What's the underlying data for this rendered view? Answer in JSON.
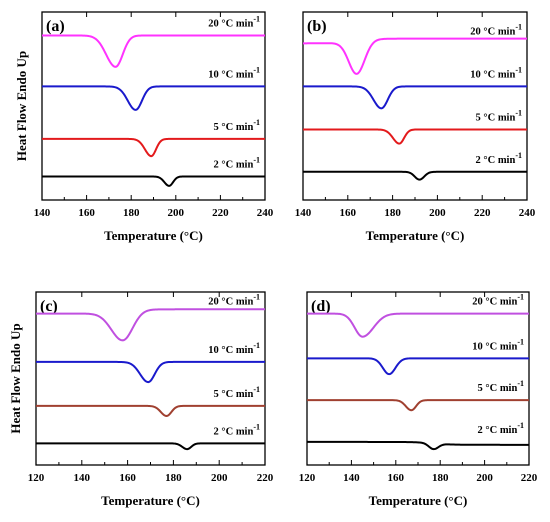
{
  "colors": {
    "20": "#ff33ff",
    "10": "#1a1acc",
    "5": "#e31a1c",
    "2": "#000000",
    "20c": "#c050e0",
    "5c": "#a04030"
  },
  "chart_data": [
    {
      "type": "line",
      "panel_label": "(a)",
      "xlabel": "Temperature (°C)",
      "ylabel": "Heat Flow Endo Up",
      "xlim": [
        140,
        240
      ],
      "xticks": [
        140,
        160,
        180,
        200,
        220,
        240
      ],
      "grid": false,
      "series": [
        {
          "name": "20 °C min-1",
          "rate_label": "20 °C min",
          "rate_exp": "-1",
          "color": "#ff33ff",
          "baseline": 2.1,
          "peak_x": 173,
          "depth": 0.4,
          "width_left": 6,
          "width_right": 4.5,
          "ramp": 0
        },
        {
          "name": "10 °C min-1",
          "rate_label": "10 °C min",
          "rate_exp": "-1",
          "color": "#1a1acc",
          "baseline": 1.45,
          "peak_x": 182,
          "depth": 0.3,
          "width_left": 5,
          "width_right": 4,
          "ramp": 0
        },
        {
          "name": "5 °C min-1",
          "rate_label": "5 °C min",
          "rate_exp": "-1",
          "color": "#e31a1c",
          "baseline": 0.78,
          "peak_x": 189,
          "depth": 0.22,
          "width_left": 4,
          "width_right": 3,
          "ramp": 0
        },
        {
          "name": "2 °C min-1",
          "rate_label": "2 °C min",
          "rate_exp": "-1",
          "color": "#000000",
          "baseline": 0.3,
          "peak_x": 197,
          "depth": 0.12,
          "width_left": 3,
          "width_right": 2.5,
          "ramp": 0
        }
      ]
    },
    {
      "type": "line",
      "panel_label": "(b)",
      "xlabel": "Temperature (°C)",
      "ylabel": "",
      "xlim": [
        140,
        240
      ],
      "xticks": [
        140,
        160,
        180,
        200,
        220,
        240
      ],
      "grid": false,
      "series": [
        {
          "name": "20 °C min-1",
          "rate_label": "20 °C min",
          "rate_exp": "-1",
          "color": "#ff33ff",
          "baseline": 2.0,
          "peak_x": 164,
          "depth": 0.42,
          "width_left": 5,
          "width_right": 5,
          "ramp": 0.06
        },
        {
          "name": "10 °C min-1",
          "rate_label": "10 °C min",
          "rate_exp": "-1",
          "color": "#1a1acc",
          "baseline": 1.45,
          "peak_x": 175,
          "depth": 0.28,
          "width_left": 5,
          "width_right": 4,
          "ramp": 0
        },
        {
          "name": "5 °C min-1",
          "rate_label": "5 °C min",
          "rate_exp": "-1",
          "color": "#e31a1c",
          "baseline": 0.9,
          "peak_x": 183,
          "depth": 0.18,
          "width_left": 4,
          "width_right": 3,
          "ramp": 0
        },
        {
          "name": "2 °C min-1",
          "rate_label": "2 °C min",
          "rate_exp": "-1",
          "color": "#000000",
          "baseline": 0.36,
          "peak_x": 192,
          "depth": 0.1,
          "width_left": 3,
          "width_right": 3,
          "ramp": 0
        }
      ]
    },
    {
      "type": "line",
      "panel_label": "(c)",
      "xlabel": "Temperature (°C)",
      "ylabel": "Heat Flow Endo Up",
      "xlim": [
        120,
        220
      ],
      "xticks": [
        120,
        140,
        160,
        180,
        200,
        220
      ],
      "grid": false,
      "series": [
        {
          "name": "20 °C min-1",
          "rate_label": "20 °C min",
          "rate_exp": "-1",
          "color": "#c050e0",
          "baseline": 2.1,
          "peak_x": 158,
          "depth": 0.4,
          "width_left": 7,
          "width_right": 6,
          "ramp": 0.06
        },
        {
          "name": "10 °C min-1",
          "rate_label": "10 °C min",
          "rate_exp": "-1",
          "color": "#1a1acc",
          "baseline": 1.43,
          "peak_x": 169,
          "depth": 0.28,
          "width_left": 5,
          "width_right": 4,
          "ramp": 0
        },
        {
          "name": "5 °C min-1",
          "rate_label": "5 °C min",
          "rate_exp": "-1",
          "color": "#a04030",
          "baseline": 0.82,
          "peak_x": 177,
          "depth": 0.14,
          "width_left": 3.5,
          "width_right": 3,
          "ramp": 0
        },
        {
          "name": "2 °C min-1",
          "rate_label": "2 °C min",
          "rate_exp": "-1",
          "color": "#000000",
          "baseline": 0.3,
          "peak_x": 186,
          "depth": 0.08,
          "width_left": 3,
          "width_right": 2.5,
          "ramp": 0
        }
      ]
    },
    {
      "type": "line",
      "panel_label": "(d)",
      "xlabel": "Temperature (°C)",
      "ylabel": "",
      "xlim": [
        120,
        220
      ],
      "xticks": [
        120,
        140,
        160,
        180,
        200,
        220
      ],
      "grid": false,
      "series": [
        {
          "name": "20 °C min-1",
          "rate_label": "20 °C min",
          "rate_exp": "-1",
          "color": "#c050e0",
          "baseline": 2.1,
          "peak_x": 145,
          "depth": 0.32,
          "width_left": 5,
          "width_right": 7,
          "ramp": 0
        },
        {
          "name": "10 °C min-1",
          "rate_label": "10 °C min",
          "rate_exp": "-1",
          "color": "#1a1acc",
          "baseline": 1.48,
          "peak_x": 157,
          "depth": 0.22,
          "width_left": 4,
          "width_right": 4,
          "ramp": 0
        },
        {
          "name": "5 °C min-1",
          "rate_label": "5 °C min",
          "rate_exp": "-1",
          "color": "#a04030",
          "baseline": 0.9,
          "peak_x": 167,
          "depth": 0.14,
          "width_left": 3.5,
          "width_right": 3,
          "ramp": 0
        },
        {
          "name": "2 °C min-1",
          "rate_label": "2 °C min",
          "rate_exp": "-1",
          "color": "#000000",
          "baseline": 0.32,
          "peak_x": 177,
          "depth": 0.08,
          "width_left": 3,
          "width_right": 3,
          "ramp": -0.04
        }
      ]
    }
  ]
}
